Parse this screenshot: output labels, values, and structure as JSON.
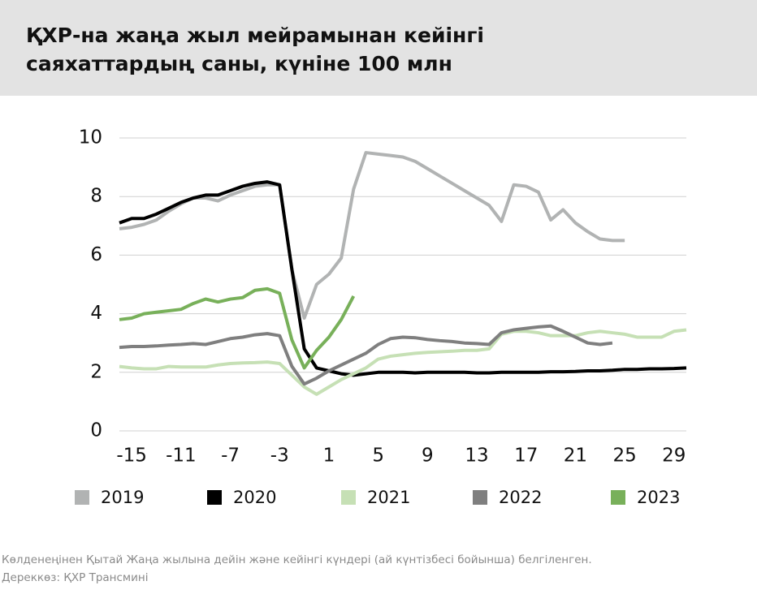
{
  "chart_data": {
    "type": "line",
    "title": [
      "ҚХР-на жаңа жыл мейрамынан кейінгі",
      "саяхаттардың саны, күніне 100 млн"
    ],
    "note": "Көлденеңінен Қытай Жаңа жылына дейін және кейінгі күндері (ай күнтізбесі бойынша) белгіленген.",
    "source": "Дереккөз: ҚХР Трансмині",
    "x": [
      -16,
      -15,
      -14,
      -13,
      -12,
      -11,
      -10,
      -9,
      -8,
      -7,
      -6,
      -5,
      -4,
      -3,
      -2,
      -1,
      0,
      1,
      2,
      3,
      4,
      5,
      6,
      7,
      8,
      9,
      10,
      11,
      12,
      13,
      14,
      15,
      16,
      17,
      18,
      19,
      20,
      21,
      22,
      23,
      24,
      25,
      26,
      27,
      28,
      29,
      30
    ],
    "xlim": [
      -16,
      30
    ],
    "xticks": [
      -15,
      -11,
      -7,
      -3,
      1,
      5,
      9,
      13,
      17,
      21,
      25,
      29
    ],
    "ylim": [
      0,
      10
    ],
    "yticks": [
      0,
      2,
      4,
      6,
      8,
      10
    ],
    "grid": true,
    "series": [
      {
        "name": "2019",
        "color": "#b1b3b3",
        "values": [
          6.9,
          6.95,
          7.05,
          7.2,
          7.5,
          7.75,
          7.95,
          7.95,
          7.85,
          8.05,
          8.2,
          8.35,
          8.4,
          8.4,
          5.5,
          3.85,
          5.0,
          5.35,
          5.9,
          8.25,
          9.5,
          9.45,
          9.4,
          9.35,
          9.2,
          8.95,
          8.7,
          8.45,
          8.2,
          7.95,
          7.7,
          7.15,
          8.4,
          8.35,
          8.15,
          7.2,
          7.55,
          7.1,
          6.8,
          6.55,
          6.5,
          6.5,
          null,
          null,
          null,
          null,
          null
        ]
      },
      {
        "name": "2020",
        "color": "#000000",
        "values": [
          7.1,
          7.25,
          7.25,
          7.4,
          7.6,
          7.8,
          7.95,
          8.05,
          8.05,
          8.2,
          8.35,
          8.45,
          8.5,
          8.4,
          5.5,
          2.8,
          2.15,
          2.05,
          1.95,
          1.9,
          1.95,
          2.0,
          2.0,
          2.0,
          1.98,
          2.0,
          2.0,
          2.0,
          2.0,
          1.98,
          1.98,
          2.0,
          2.0,
          2.0,
          2.0,
          2.02,
          2.02,
          2.03,
          2.05,
          2.05,
          2.07,
          2.1,
          2.1,
          2.12,
          2.12,
          2.13,
          2.15
        ]
      },
      {
        "name": "2021",
        "color": "#c6e0b5",
        "values": [
          2.2,
          2.15,
          2.12,
          2.12,
          2.2,
          2.18,
          2.18,
          2.18,
          2.25,
          2.3,
          2.32,
          2.33,
          2.35,
          2.3,
          1.9,
          1.5,
          1.25,
          1.5,
          1.75,
          1.95,
          2.15,
          2.45,
          2.55,
          2.6,
          2.65,
          2.68,
          2.7,
          2.72,
          2.75,
          2.75,
          2.8,
          3.3,
          3.4,
          3.4,
          3.35,
          3.25,
          3.25,
          3.25,
          3.35,
          3.4,
          3.35,
          3.3,
          3.2,
          3.2,
          3.2,
          3.4,
          3.45
        ]
      },
      {
        "name": "2022",
        "color": "#7f7f7f",
        "values": [
          2.85,
          2.88,
          2.88,
          2.9,
          2.93,
          2.95,
          2.98,
          2.95,
          3.05,
          3.15,
          3.2,
          3.28,
          3.32,
          3.25,
          2.2,
          1.6,
          1.8,
          2.05,
          2.25,
          2.45,
          2.65,
          2.95,
          3.15,
          3.2,
          3.18,
          3.12,
          3.08,
          3.05,
          3.0,
          2.98,
          2.95,
          3.35,
          3.45,
          3.5,
          3.55,
          3.58,
          3.4,
          3.2,
          3.0,
          2.95,
          3.0,
          null,
          null,
          null,
          null,
          null,
          null
        ]
      },
      {
        "name": "2023",
        "color": "#78b05a",
        "values": [
          3.8,
          3.85,
          4.0,
          4.05,
          4.1,
          4.15,
          4.35,
          4.5,
          4.4,
          4.5,
          4.55,
          4.8,
          4.85,
          4.7,
          3.1,
          2.15,
          2.75,
          3.2,
          3.8,
          4.6,
          null,
          null,
          null,
          null,
          null,
          null,
          null,
          null,
          null,
          null,
          null,
          null,
          null,
          null,
          null,
          null,
          null,
          null,
          null,
          null,
          null,
          null,
          null,
          null,
          null,
          null,
          null
        ]
      }
    ]
  }
}
